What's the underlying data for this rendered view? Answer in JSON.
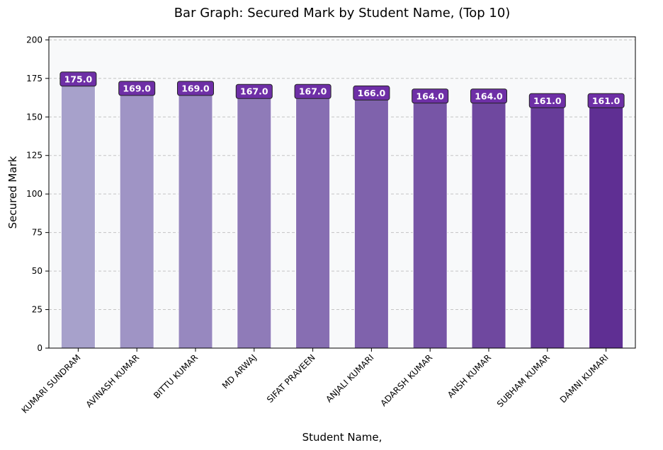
{
  "chart_data": {
    "type": "bar",
    "title": "Bar Graph: Secured Mark by Student Name, (Top 10)",
    "xlabel": "Student Name,",
    "ylabel": "Secured Mark",
    "categories": [
      "KUMARI SUNDRAM",
      "AVINASH KUMAR",
      "BITTU KUMAR",
      "MD ARWAJ",
      "SIFAT PRAVEEN",
      "ANJALI KUMARI",
      "ADARSH KUMAR",
      "ANSH KUMAR",
      "SUBHAM KUMAR",
      "DAMNI KUMARI"
    ],
    "values": [
      175.0,
      169.0,
      169.0,
      167.0,
      167.0,
      166.0,
      164.0,
      164.0,
      161.0,
      161.0
    ],
    "data_labels": [
      "175.0",
      "169.0",
      "169.0",
      "167.0",
      "167.0",
      "166.0",
      "164.0",
      "164.0",
      "161.0",
      "161.0"
    ],
    "ylim": [
      0,
      202
    ],
    "yticks": [
      0,
      25,
      50,
      75,
      100,
      125,
      150,
      175,
      200
    ],
    "grid": "y-dashed",
    "colors": {
      "plot_background": "#f8f9fa",
      "bar_start": "#a7a1cb",
      "bar_end": "#5f2f93",
      "label_box": "#6e2fa6",
      "grid": "#c4c4c4"
    }
  }
}
